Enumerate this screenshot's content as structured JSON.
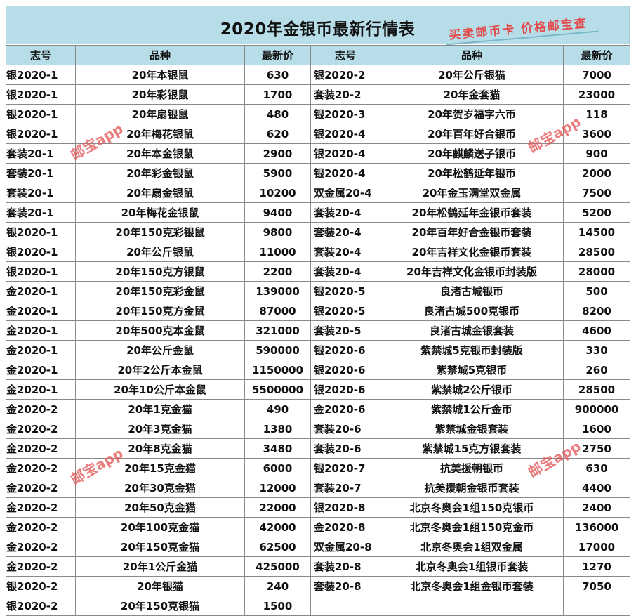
{
  "title": "2020年金银币最新行情表",
  "promo": "买卖邮币卡 价格邮宝查",
  "watermark": "邮宝app",
  "headers": [
    "志号",
    "品种",
    "最新价",
    "志号",
    "品种",
    "最新价"
  ],
  "rows": [
    {
      "c1": "银2020-1",
      "n1": "20年本银鼠",
      "p1": "630",
      "c2": "银2020-2",
      "n2": "20年公斤银猫",
      "p2": "7000"
    },
    {
      "c1": "银2020-1",
      "n1": "20年彩银鼠",
      "p1": "1700",
      "c2": "套装20-2",
      "n2": "20年金套猫",
      "p2": "23000"
    },
    {
      "c1": "银2020-1",
      "n1": "20年扇银鼠",
      "p1": "480",
      "c2": "银2020-3",
      "n2": "20年贺岁福字六币",
      "p2": "118"
    },
    {
      "c1": "银2020-1",
      "n1": "20年梅花银鼠",
      "p1": "620",
      "c2": "银2020-4",
      "n2": "20年百年好合银币",
      "p2": "3600"
    },
    {
      "c1": "套装20-1",
      "n1": "20年本金银鼠",
      "p1": "2900",
      "c2": "银2020-4",
      "n2": "20年麒麟送子银币",
      "p2": "900"
    },
    {
      "c1": "套装20-1",
      "n1": "20年彩金银鼠",
      "p1": "5900",
      "c2": "银2020-4",
      "n2": "20年松鹤延年银币",
      "p2": "2000"
    },
    {
      "c1": "套装20-1",
      "n1": "20年扇金银鼠",
      "p1": "10200",
      "c2": "双金属20-4",
      "n2": "20年金玉满堂双金属",
      "p2": "7500"
    },
    {
      "c1": "套装20-1",
      "n1": "20年梅花金银鼠",
      "p1": "9400",
      "c2": "套装20-4",
      "n2": "20年松鹤延年金银币套装",
      "p2": "5200"
    },
    {
      "c1": "银2020-1",
      "n1": "20年150克彩银鼠",
      "p1": "9800",
      "c2": "套装20-4",
      "n2": "20年百年好合金银币套装",
      "p2": "14500"
    },
    {
      "c1": "银2020-1",
      "n1": "20年公斤银鼠",
      "p1": "11000",
      "c2": "套装20-4",
      "n2": "20年吉祥文化金银币套装",
      "p2": "28500"
    },
    {
      "c1": "银2020-1",
      "n1": "20年150克方银鼠",
      "p1": "2200",
      "c2": "套装20-4",
      "n2": "20年吉祥文化金银币封装版",
      "p2": "28000"
    },
    {
      "c1": "金2020-1",
      "n1": "20年150克彩金鼠",
      "p1": "139000",
      "c2": "银2020-5",
      "n2": "良渚古城银币",
      "p2": "500"
    },
    {
      "c1": "金2020-1",
      "n1": "20年150克方金鼠",
      "p1": "87000",
      "c2": "银2020-5",
      "n2": "良渚古城500克银币",
      "p2": "8200"
    },
    {
      "c1": "金2020-1",
      "n1": "20年500克本金鼠",
      "p1": "321000",
      "c2": "套装20-5",
      "n2": "良渚古城金银套装",
      "p2": "4600"
    },
    {
      "c1": "金2020-1",
      "n1": "20年公斤金鼠",
      "p1": "590000",
      "c2": "银2020-6",
      "n2": "紫禁城5克银币封装版",
      "p2": "330"
    },
    {
      "c1": "金2020-1",
      "n1": "20年2公斤本金鼠",
      "p1": "1150000",
      "c2": "银2020-6",
      "n2": "紫禁城5克银币",
      "p2": "260"
    },
    {
      "c1": "金2020-1",
      "n1": "20年10公斤本金鼠",
      "p1": "5500000",
      "c2": "银2020-6",
      "n2": "紫禁城2公斤银币",
      "p2": "28500"
    },
    {
      "c1": "金2020-2",
      "n1": "20年1克金猫",
      "p1": "490",
      "c2": "金2020-6",
      "n2": "紫禁城1公斤金币",
      "p2": "900000"
    },
    {
      "c1": "金2020-2",
      "n1": "20年3克金猫",
      "p1": "1380",
      "c2": "套装20-6",
      "n2": "紫禁城金银套装",
      "p2": "1600"
    },
    {
      "c1": "金2020-2",
      "n1": "20年8克金猫",
      "p1": "3480",
      "c2": "套装20-6",
      "n2": "紫禁城15克方银套装",
      "p2": "2750"
    },
    {
      "c1": "金2020-2",
      "n1": "20年15克金猫",
      "p1": "6000",
      "c2": "银2020-7",
      "n2": "抗美援朝银币",
      "p2": "630"
    },
    {
      "c1": "金2020-2",
      "n1": "20年30克金猫",
      "p1": "12000",
      "c2": "套装20-7",
      "n2": "抗美援朝金银币套装",
      "p2": "4400"
    },
    {
      "c1": "金2020-2",
      "n1": "20年50克金猫",
      "p1": "22000",
      "c2": "银2020-8",
      "n2": "北京冬奥会1组150克银币",
      "p2": "2400"
    },
    {
      "c1": "金2020-2",
      "n1": "20年100克金猫",
      "p1": "42000",
      "c2": "金2020-8",
      "n2": "北京冬奥会1组150克金币",
      "p2": "136000"
    },
    {
      "c1": "金2020-2",
      "n1": "20年150克金猫",
      "p1": "62500",
      "c2": "双金属20-8",
      "n2": "北京冬奥会1组双金属",
      "p2": "17000"
    },
    {
      "c1": "金2020-2",
      "n1": "20年1公斤金猫",
      "p1": "425000",
      "c2": "套装20-8",
      "n2": "北京冬奥会1组银币套装",
      "p2": "1270"
    },
    {
      "c1": "银2020-2",
      "n1": "20年银猫",
      "p1": "240",
      "c2": "套装20-8",
      "n2": "北京冬奥会1组金银币套装",
      "p2": "7050"
    },
    {
      "c1": "银2020-2",
      "n1": "20年150克银猫",
      "p1": "1500",
      "c2": "",
      "n2": "",
      "p2": ""
    }
  ]
}
